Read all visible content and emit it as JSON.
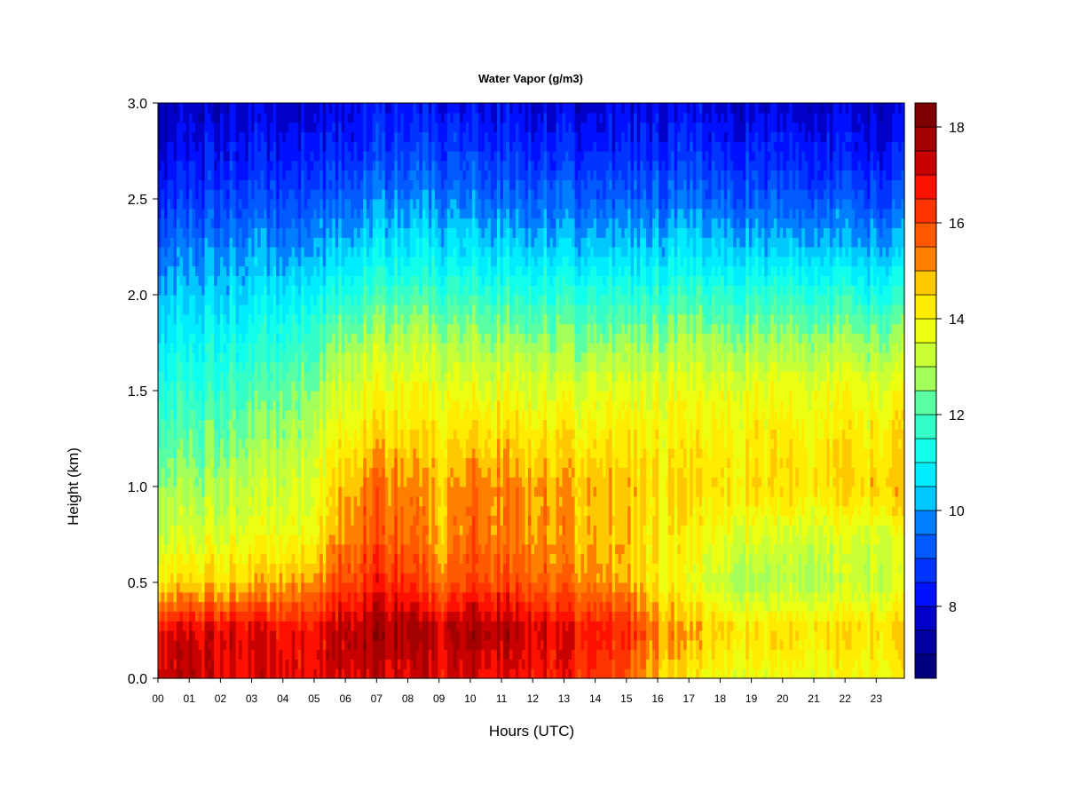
{
  "chart_data": {
    "type": "heatmap",
    "title": "Water Vapor (g/m3)",
    "xlabel": "Hours (UTC)",
    "ylabel": "Height (km)",
    "xlim": [
      0,
      23.9
    ],
    "ylim": [
      0,
      3.0
    ],
    "x_ticks": [
      "00",
      "01",
      "02",
      "03",
      "04",
      "05",
      "06",
      "07",
      "08",
      "09",
      "10",
      "11",
      "12",
      "13",
      "14",
      "15",
      "16",
      "17",
      "18",
      "19",
      "20",
      "21",
      "22",
      "23"
    ],
    "y_ticks": [
      "0.0",
      "0.5",
      "1.0",
      "1.5",
      "2.0",
      "2.5",
      "3.0"
    ],
    "colorbar": {
      "min": 6.5,
      "max": 18.5,
      "levels": 24,
      "ticks": [
        "8",
        "10",
        "12",
        "14",
        "16",
        "18"
      ]
    },
    "hours": [
      0,
      1,
      2,
      3,
      4,
      5,
      6,
      7,
      8,
      9,
      10,
      11,
      12,
      13,
      14,
      15,
      16,
      17,
      18,
      19,
      20,
      21,
      22,
      23
    ],
    "heights_km": [
      0.0,
      0.25,
      0.5,
      0.75,
      1.0,
      1.25,
      1.5,
      1.75,
      2.0,
      2.25,
      2.5,
      2.75,
      3.0
    ],
    "values": [
      [
        17.4,
        17.0,
        14.4,
        13.4,
        12.8,
        12.2,
        11.7,
        11.0,
        10.4,
        9.5,
        8.7,
        8.0,
        7.5
      ],
      [
        17.5,
        17.1,
        14.5,
        13.4,
        12.8,
        12.1,
        11.6,
        11.0,
        10.3,
        9.6,
        8.8,
        8.1,
        7.6
      ],
      [
        17.2,
        17.2,
        14.6,
        13.6,
        13.0,
        12.4,
        11.9,
        11.2,
        10.6,
        9.8,
        9.0,
        8.3,
        7.7
      ],
      [
        17.0,
        17.0,
        14.7,
        13.6,
        13.2,
        12.6,
        12.0,
        11.3,
        10.6,
        9.9,
        9.0,
        8.3,
        7.8
      ],
      [
        16.9,
        16.8,
        14.8,
        13.7,
        13.2,
        12.8,
        12.2,
        11.5,
        10.6,
        9.6,
        8.8,
        8.2,
        7.6
      ],
      [
        16.9,
        16.9,
        15.2,
        14.0,
        13.6,
        13.2,
        12.6,
        11.9,
        11.0,
        10.0,
        9.1,
        8.4,
        7.8
      ],
      [
        17.3,
        17.6,
        16.2,
        15.4,
        15.0,
        14.2,
        13.6,
        12.8,
        11.6,
        10.4,
        9.4,
        8.6,
        8.0
      ],
      [
        17.3,
        17.8,
        16.6,
        15.8,
        15.6,
        14.6,
        13.9,
        13.1,
        11.9,
        10.8,
        9.7,
        8.9,
        8.3
      ],
      [
        17.2,
        17.9,
        16.4,
        15.6,
        15.4,
        14.6,
        14.0,
        13.2,
        12.0,
        10.8,
        9.8,
        9.0,
        8.2
      ],
      [
        17.0,
        17.2,
        15.4,
        14.8,
        14.6,
        14.2,
        13.6,
        12.9,
        11.7,
        10.6,
        9.6,
        8.8,
        8.1
      ],
      [
        17.0,
        17.8,
        16.2,
        15.6,
        15.4,
        14.6,
        13.8,
        12.9,
        11.8,
        10.6,
        9.6,
        8.8,
        8.1
      ],
      [
        16.9,
        17.6,
        16.0,
        15.4,
        15.3,
        14.5,
        13.8,
        12.8,
        11.7,
        10.5,
        9.5,
        8.7,
        8.0
      ],
      [
        16.8,
        17.4,
        15.8,
        15.2,
        15.2,
        14.4,
        13.7,
        12.8,
        11.6,
        10.4,
        9.4,
        8.6,
        7.9
      ],
      [
        16.6,
        17.0,
        15.5,
        15.0,
        15.0,
        14.4,
        13.6,
        12.7,
        11.6,
        10.4,
        9.4,
        8.6,
        7.9
      ],
      [
        16.2,
        16.8,
        15.2,
        14.8,
        14.8,
        14.2,
        13.6,
        12.6,
        11.5,
        10.3,
        9.3,
        8.5,
        7.8
      ],
      [
        15.6,
        16.4,
        14.8,
        14.6,
        14.6,
        14.2,
        13.6,
        12.6,
        11.4,
        10.2,
        9.2,
        8.4,
        7.8
      ],
      [
        14.6,
        15.4,
        14.2,
        14.2,
        14.4,
        14.0,
        13.6,
        12.8,
        11.6,
        10.4,
        9.4,
        8.6,
        7.9
      ],
      [
        14.0,
        14.8,
        13.6,
        14.0,
        14.4,
        14.0,
        13.6,
        12.8,
        11.6,
        10.4,
        9.4,
        8.6,
        7.9
      ],
      [
        13.8,
        14.6,
        13.2,
        13.8,
        14.4,
        14.1,
        13.7,
        12.8,
        11.6,
        10.4,
        9.3,
        8.5,
        7.9
      ],
      [
        13.8,
        14.4,
        12.8,
        13.6,
        14.4,
        14.2,
        13.8,
        12.8,
        11.6,
        10.4,
        9.3,
        8.5,
        7.8
      ],
      [
        13.8,
        14.4,
        12.9,
        13.4,
        14.4,
        14.2,
        13.8,
        12.8,
        11.6,
        10.3,
        9.2,
        8.4,
        7.8
      ],
      [
        13.8,
        14.4,
        13.0,
        13.4,
        14.4,
        14.2,
        13.8,
        12.8,
        11.6,
        10.3,
        9.2,
        8.4,
        7.7
      ],
      [
        13.8,
        14.4,
        13.1,
        13.4,
        14.5,
        14.2,
        13.8,
        12.8,
        11.5,
        10.2,
        9.1,
        8.3,
        7.7
      ],
      [
        13.8,
        14.5,
        13.2,
        13.5,
        14.6,
        14.2,
        13.7,
        12.7,
        11.4,
        10.1,
        9.0,
        8.2,
        7.6
      ]
    ]
  }
}
